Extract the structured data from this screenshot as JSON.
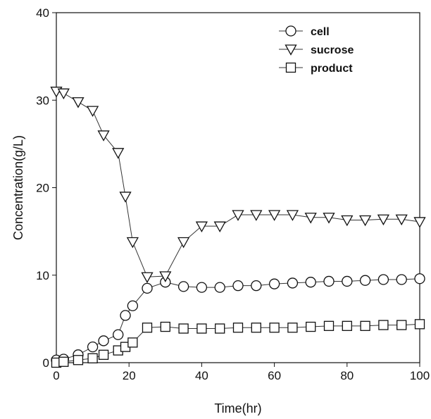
{
  "chart_data": {
    "type": "line",
    "xlabel": "Time(hr)",
    "ylabel": "Concentration(g/L)",
    "xlim": [
      0,
      100
    ],
    "ylim": [
      0,
      40
    ],
    "xticks": [
      0,
      20,
      40,
      60,
      80,
      100
    ],
    "yticks": [
      0,
      10,
      20,
      30,
      40
    ],
    "grid": false,
    "legend_position": "top-right",
    "series": [
      {
        "name": "cell",
        "marker": "circle",
        "x": [
          0,
          2,
          6,
          10,
          13,
          17,
          19,
          21,
          25,
          30,
          35,
          40,
          45,
          50,
          55,
          60,
          65,
          70,
          75,
          80,
          85,
          90,
          95,
          100
        ],
        "values": [
          0.3,
          0.4,
          0.9,
          1.8,
          2.5,
          3.2,
          5.4,
          6.5,
          8.5,
          9.2,
          8.7,
          8.6,
          8.6,
          8.8,
          8.8,
          9.0,
          9.1,
          9.2,
          9.3,
          9.3,
          9.4,
          9.5,
          9.5,
          9.6
        ]
      },
      {
        "name": "sucrose",
        "marker": "triangle-down",
        "x": [
          0,
          2,
          6,
          10,
          13,
          17,
          19,
          21,
          25,
          30,
          35,
          40,
          45,
          50,
          55,
          60,
          65,
          70,
          75,
          80,
          85,
          90,
          95,
          100
        ],
        "values": [
          31.0,
          30.8,
          29.8,
          28.8,
          26.0,
          24.0,
          19.0,
          13.8,
          9.8,
          9.9,
          13.8,
          15.6,
          15.6,
          16.9,
          16.9,
          16.9,
          16.9,
          16.6,
          16.6,
          16.3,
          16.3,
          16.4,
          16.4,
          16.1
        ]
      },
      {
        "name": "product",
        "marker": "square",
        "x": [
          0,
          2,
          6,
          10,
          13,
          17,
          19,
          21,
          25,
          30,
          35,
          40,
          45,
          50,
          55,
          60,
          65,
          70,
          75,
          80,
          85,
          90,
          95,
          100
        ],
        "values": [
          0.0,
          0.1,
          0.3,
          0.5,
          0.9,
          1.4,
          1.8,
          2.3,
          4.0,
          4.1,
          3.9,
          3.9,
          3.9,
          4.0,
          4.0,
          4.0,
          4.0,
          4.1,
          4.2,
          4.2,
          4.2,
          4.3,
          4.3,
          4.4
        ]
      }
    ]
  }
}
